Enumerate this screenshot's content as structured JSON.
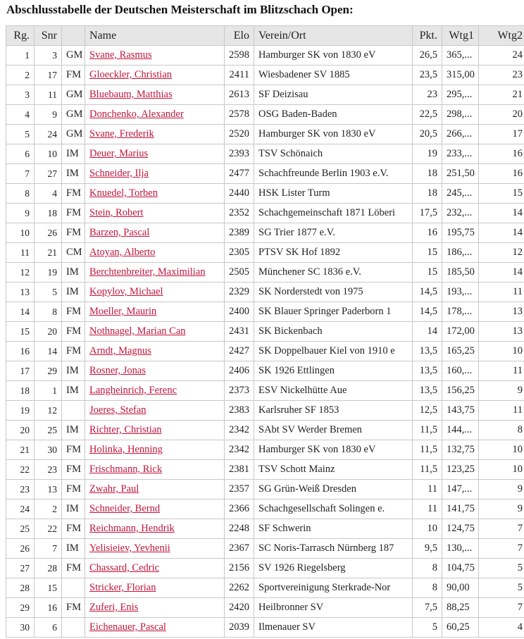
{
  "title": "Abschlusstabelle der Deutschen Meisterschaft im Blitzschach Open:",
  "headers": [
    "Rg.",
    "Snr",
    "",
    "Name",
    "Elo",
    "Verein/Ort",
    "Pkt.",
    "Wtg1",
    "Wtg2"
  ],
  "rows": [
    [
      "1",
      "3",
      "GM",
      "Svane, Rasmus",
      "2598",
      "Hamburger SK von 1830 eV",
      "26,5",
      "365,...",
      "24"
    ],
    [
      "2",
      "17",
      "FM",
      "Gloeckler, Christian",
      "2411",
      "Wiesbadener SV 1885",
      "23,5",
      "315,00",
      "23"
    ],
    [
      "3",
      "11",
      "GM",
      "Bluebaum, Matthias",
      "2613",
      "SF Deizisau",
      "23",
      "295,...",
      "21"
    ],
    [
      "4",
      "9",
      "GM",
      "Donchenko, Alexander",
      "2578",
      "OSG Baden-Baden",
      "22,5",
      "298,...",
      "20"
    ],
    [
      "5",
      "24",
      "GM",
      "Svane, Frederik",
      "2520",
      "Hamburger SK von 1830 eV",
      "20,5",
      "266,...",
      "17"
    ],
    [
      "6",
      "10",
      "IM",
      "Deuer, Marius",
      "2393",
      "TSV Schönaich",
      "19",
      "233,...",
      "16"
    ],
    [
      "7",
      "27",
      "IM",
      "Schneider, Ilja",
      "2477",
      "Schachfreunde Berlin 1903 e.V.",
      "18",
      "251,50",
      "16"
    ],
    [
      "8",
      "4",
      "FM",
      "Knuedel, Torben",
      "2440",
      "HSK Lister Turm",
      "18",
      "245,...",
      "15"
    ],
    [
      "9",
      "18",
      "FM",
      "Stein, Robert",
      "2352",
      "Schachgemeinschaft 1871 Löberi",
      "17,5",
      "232,...",
      "14"
    ],
    [
      "10",
      "26",
      "FM",
      "Barzen, Pascal",
      "2389",
      "SG Trier 1877 e.V.",
      "16",
      "195,75",
      "14"
    ],
    [
      "11",
      "21",
      "CM",
      "Atoyan, Alberto",
      "2305",
      "PTSV SK Hof 1892",
      "15",
      "186,...",
      "12"
    ],
    [
      "12",
      "19",
      "IM",
      "Berchtenbreiter, Maximilian",
      "2505",
      "Münchener SC 1836 e.V.",
      "15",
      "185,50",
      "14"
    ],
    [
      "13",
      "5",
      "IM",
      "Kopylov, Michael",
      "2329",
      "SK Norderstedt von 1975",
      "14,5",
      "193,...",
      "11"
    ],
    [
      "14",
      "8",
      "FM",
      "Moeller, Maurin",
      "2400",
      "SK Blauer Springer Paderborn 1",
      "14,5",
      "178,...",
      "13"
    ],
    [
      "15",
      "20",
      "FM",
      "Nothnagel, Marian Can",
      "2431",
      "SK Bickenbach",
      "14",
      "172,00",
      "13"
    ],
    [
      "16",
      "14",
      "FM",
      "Arndt, Magnus",
      "2427",
      "SK Doppelbauer Kiel von 1910 e",
      "13,5",
      "165,25",
      "10"
    ],
    [
      "17",
      "29",
      "IM",
      "Rosner, Jonas",
      "2406",
      "SK 1926 Ettlingen",
      "13,5",
      "160,...",
      "11"
    ],
    [
      "18",
      "1",
      "IM",
      "Langheinrich, Ferenc",
      "2373",
      "ESV Nickelhütte Aue",
      "13,5",
      "156,25",
      "9"
    ],
    [
      "19",
      "12",
      "",
      "Joeres, Stefan",
      "2383",
      "Karlsruher SF 1853",
      "12,5",
      "143,75",
      "11"
    ],
    [
      "20",
      "25",
      "IM",
      "Richter, Christian",
      "2342",
      "SAbt SV Werder Bremen",
      "11,5",
      "144,...",
      "8"
    ],
    [
      "21",
      "30",
      "FM",
      "Holinka, Henning",
      "2342",
      "Hamburger SK von 1830 eV",
      "11,5",
      "132,75",
      "10"
    ],
    [
      "22",
      "23",
      "FM",
      "Frischmann, Rick",
      "2381",
      "TSV Schott Mainz",
      "11,5",
      "123,25",
      "10"
    ],
    [
      "23",
      "13",
      "FM",
      "Zwahr, Paul",
      "2357",
      "SG Grün-Weiß Dresden",
      "11",
      "147,...",
      "9"
    ],
    [
      "24",
      "2",
      "IM",
      "Schneider, Bernd",
      "2366",
      "Schachgesellschaft Solingen e.",
      "11",
      "141,75",
      "9"
    ],
    [
      "25",
      "22",
      "FM",
      "Reichmann, Hendrik",
      "2248",
      "SF Schwerin",
      "10",
      "124,75",
      "7"
    ],
    [
      "26",
      "7",
      "IM",
      "Yelisieiev, Yevhenii",
      "2367",
      "SC Noris-Tarrasch Nürnberg 187",
      "9,5",
      "130,...",
      "7"
    ],
    [
      "27",
      "28",
      "FM",
      "Chassard, Cedric",
      "2156",
      "SV 1926 Riegelsberg",
      "8",
      "104,75",
      "5"
    ],
    [
      "28",
      "15",
      "",
      "Stricker, Florian",
      "2262",
      "Sportvereinigung Sterkrade-Nor",
      "8",
      "90,00",
      "5"
    ],
    [
      "29",
      "16",
      "FM",
      "Zuferi, Enis",
      "2420",
      "Heilbronner SV",
      "7,5",
      "88,25",
      "7"
    ],
    [
      "30",
      "6",
      "",
      "Eichenauer, Pascal",
      "2039",
      "Ilmenauer SV",
      "5",
      "60,25",
      "4"
    ]
  ],
  "colors": {
    "link": "#c0143c",
    "header_bg": "#e6e6e6",
    "border": "#c8c8c8"
  }
}
